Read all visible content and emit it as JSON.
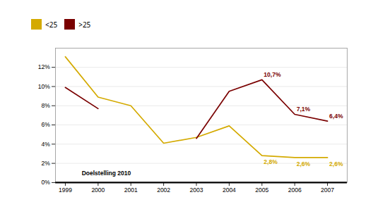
{
  "chart_data": {
    "type": "line",
    "x": [
      1999,
      2000,
      2001,
      2002,
      2003,
      2004,
      2005,
      2006,
      2007
    ],
    "series": [
      {
        "name": "<25",
        "color": "#d4aa00",
        "values": [
          0.131,
          0.089,
          0.08,
          0.041,
          0.047,
          0.059,
          0.028,
          0.026,
          0.026
        ],
        "value_labels": [
          null,
          null,
          null,
          null,
          null,
          null,
          "2,8%",
          "2,6%",
          "2,6%"
        ]
      },
      {
        "name": ">25",
        "color": "#7a0000",
        "values": [
          0.099,
          0.077,
          null,
          null,
          0.046,
          0.095,
          0.107,
          0.071,
          0.064
        ],
        "value_labels": [
          null,
          null,
          null,
          null,
          null,
          null,
          "10,7%",
          "7,1%",
          "6,4%"
        ]
      }
    ],
    "data_labels": true,
    "annotations": [
      {
        "type": "hline",
        "y": 0,
        "color": "#000000"
      },
      {
        "type": "text",
        "x": 1999.5,
        "y": 0.007,
        "text": "Doelstelling 2010",
        "color": "#000000"
      }
    ],
    "xlim": [
      1998.7,
      2007.6
    ],
    "xticks": [
      1999,
      2000,
      2001,
      2002,
      2003,
      2004,
      2005,
      2006,
      2007
    ],
    "ylim": [
      0,
      0.14
    ],
    "yticks": [
      {
        "value": 0,
        "label": "0%"
      },
      {
        "value": 0.02,
        "label": "2%"
      },
      {
        "value": 0.04,
        "label": "4%"
      },
      {
        "value": 0.06,
        "label": "6%"
      },
      {
        "value": 0.08,
        "label": "8%"
      },
      {
        "value": 0.1,
        "label": "10%"
      },
      {
        "value": 0.12,
        "label": "12%"
      }
    ],
    "grid": true,
    "legend": "upper left"
  }
}
